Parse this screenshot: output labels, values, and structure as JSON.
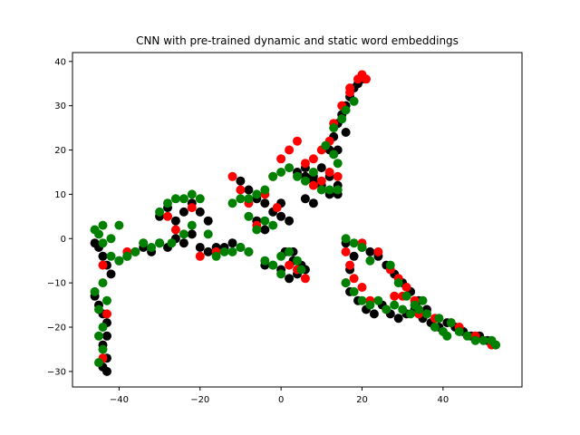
{
  "chart_data": {
    "type": "scatter",
    "title": "CNN with pre-trained dynamic and static word embeddings",
    "xlabel": "",
    "ylabel": "",
    "xlim": [
      -51.5,
      59.5
    ],
    "ylim": [
      -33.5,
      42
    ],
    "xticks": [
      -40,
      -20,
      0,
      20,
      40
    ],
    "yticks": [
      -30,
      -20,
      -10,
      0,
      10,
      20,
      30,
      40
    ],
    "xtick_labels": [
      "−40",
      "−20",
      "0",
      "20",
      "40"
    ],
    "ytick_labels": [
      "−30",
      "−20",
      "−10",
      "0",
      "10",
      "20",
      "30",
      "40"
    ],
    "grid": false,
    "series": [
      {
        "color": "#000000",
        "points": [
          [
            -46,
            -13
          ],
          [
            -45,
            -15
          ],
          [
            -44,
            -17
          ],
          [
            -43,
            -19
          ],
          [
            -43,
            -22
          ],
          [
            -44,
            -24
          ],
          [
            -43,
            -27
          ],
          [
            -44,
            -29
          ],
          [
            -43,
            -30
          ],
          [
            -46,
            -1
          ],
          [
            -45,
            -2
          ],
          [
            -44,
            -4
          ],
          [
            -43,
            -6
          ],
          [
            -42,
            -8
          ],
          [
            -40,
            -5
          ],
          [
            -38,
            -4
          ],
          [
            -36,
            -3
          ],
          [
            -34,
            -2
          ],
          [
            -32,
            -3
          ],
          [
            -30,
            -1
          ],
          [
            -28,
            -2
          ],
          [
            -26,
            0
          ],
          [
            -24,
            -1
          ],
          [
            -22,
            1
          ],
          [
            -20,
            -2
          ],
          [
            -18,
            -3
          ],
          [
            -16,
            -2
          ],
          [
            -14,
            -2
          ],
          [
            -12,
            -1
          ],
          [
            -26,
            4
          ],
          [
            -24,
            6
          ],
          [
            -22,
            8
          ],
          [
            -20,
            6
          ],
          [
            -18,
            4
          ],
          [
            -30,
            5
          ],
          [
            -28,
            7
          ],
          [
            -10,
            13
          ],
          [
            -8,
            11
          ],
          [
            -6,
            9
          ],
          [
            -4,
            8
          ],
          [
            -2,
            6
          ],
          [
            0,
            5
          ],
          [
            2,
            4
          ],
          [
            -6,
            4
          ],
          [
            -4,
            2
          ],
          [
            0,
            8
          ],
          [
            -10,
            -2
          ],
          [
            -8,
            -3
          ],
          [
            4,
            15
          ],
          [
            6,
            14
          ],
          [
            8,
            13
          ],
          [
            10,
            12
          ],
          [
            12,
            14
          ],
          [
            10,
            16
          ],
          [
            8,
            14
          ],
          [
            6,
            16
          ],
          [
            14,
            12
          ],
          [
            14,
            10
          ],
          [
            12,
            10
          ],
          [
            6,
            9
          ],
          [
            8,
            8
          ],
          [
            12,
            20
          ],
          [
            13,
            23
          ],
          [
            14,
            26
          ],
          [
            15,
            28
          ],
          [
            16,
            30
          ],
          [
            17,
            32
          ],
          [
            18,
            34
          ],
          [
            19,
            35
          ],
          [
            20,
            36
          ],
          [
            14,
            20
          ],
          [
            16,
            24
          ],
          [
            -2,
            -6
          ],
          [
            0,
            -7
          ],
          [
            2,
            -9
          ],
          [
            4,
            -8
          ],
          [
            6,
            -7
          ],
          [
            3,
            -5
          ],
          [
            1,
            -3
          ],
          [
            3,
            -3
          ],
          [
            5,
            -6
          ],
          [
            -4,
            -6
          ],
          [
            16,
            -1
          ],
          [
            18,
            -4
          ],
          [
            17,
            -7
          ],
          [
            16,
            -10
          ],
          [
            17,
            -12
          ],
          [
            19,
            -14
          ],
          [
            21,
            -16
          ],
          [
            23,
            -17
          ],
          [
            25,
            -15
          ],
          [
            27,
            -17
          ],
          [
            29,
            -18
          ],
          [
            31,
            -17
          ],
          [
            33,
            -16
          ],
          [
            35,
            -18
          ],
          [
            37,
            -19
          ],
          [
            39,
            -20
          ],
          [
            41,
            -19
          ],
          [
            43,
            -20
          ],
          [
            45,
            -21
          ],
          [
            47,
            -22
          ],
          [
            49,
            -22
          ],
          [
            51,
            -23
          ],
          [
            53,
            -24
          ],
          [
            20,
            -2
          ],
          [
            22,
            -3
          ],
          [
            24,
            -4
          ],
          [
            26,
            -6
          ],
          [
            28,
            -8
          ],
          [
            30,
            -10
          ],
          [
            32,
            -12
          ],
          [
            34,
            -14
          ],
          [
            36,
            -16
          ]
        ]
      },
      {
        "color": "#ff0000",
        "points": [
          [
            -44,
            -6
          ],
          [
            -43,
            -17
          ],
          [
            -44,
            -27
          ],
          [
            -38,
            -3
          ],
          [
            -34,
            -1
          ],
          [
            -26,
            2
          ],
          [
            -22,
            7
          ],
          [
            -28,
            5
          ],
          [
            -20,
            -4
          ],
          [
            -16,
            -3
          ],
          [
            -12,
            14
          ],
          [
            -10,
            11
          ],
          [
            -8,
            8
          ],
          [
            -4,
            10
          ],
          [
            -2,
            14
          ],
          [
            0,
            18
          ],
          [
            2,
            20
          ],
          [
            4,
            22
          ],
          [
            -6,
            3
          ],
          [
            -1,
            7
          ],
          [
            6,
            17
          ],
          [
            8,
            18
          ],
          [
            10,
            20
          ],
          [
            12,
            22
          ],
          [
            13,
            26
          ],
          [
            15,
            30
          ],
          [
            17,
            33
          ],
          [
            19,
            36
          ],
          [
            20,
            37
          ],
          [
            21,
            36
          ],
          [
            17,
            34
          ],
          [
            8,
            12
          ],
          [
            10,
            13
          ],
          [
            12,
            15
          ],
          [
            14,
            14
          ],
          [
            4,
            -7
          ],
          [
            6,
            -9
          ],
          [
            2,
            -6
          ],
          [
            16,
            -3
          ],
          [
            17,
            -6
          ],
          [
            18,
            -9
          ],
          [
            20,
            -11
          ],
          [
            22,
            -14
          ],
          [
            26,
            -16
          ],
          [
            28,
            -13
          ],
          [
            30,
            -13
          ],
          [
            34,
            -17
          ],
          [
            38,
            -18
          ],
          [
            42,
            -19
          ],
          [
            44,
            -20
          ],
          [
            48,
            -22
          ],
          [
            52,
            -24
          ],
          [
            20,
            -1
          ],
          [
            24,
            -3
          ],
          [
            27,
            -7
          ],
          [
            29,
            -9
          ],
          [
            31,
            -11
          ],
          [
            33,
            -14
          ]
        ]
      },
      {
        "color": "#008000",
        "points": [
          [
            -46,
            -12
          ],
          [
            -45,
            -16
          ],
          [
            -44,
            -20
          ],
          [
            -45,
            -22
          ],
          [
            -44,
            -25
          ],
          [
            -45,
            -28
          ],
          [
            -43,
            -14
          ],
          [
            -44,
            -10
          ],
          [
            -46,
            2
          ],
          [
            -45,
            1
          ],
          [
            -44,
            3
          ],
          [
            -44,
            -1
          ],
          [
            -42,
            0
          ],
          [
            -42,
            -4
          ],
          [
            -40,
            3
          ],
          [
            -40,
            -5
          ],
          [
            -38,
            -4
          ],
          [
            -36,
            -3
          ],
          [
            -34,
            -1
          ],
          [
            -32,
            -2
          ],
          [
            -30,
            6
          ],
          [
            -28,
            8
          ],
          [
            -26,
            9
          ],
          [
            -24,
            9
          ],
          [
            -22,
            10
          ],
          [
            -20,
            9
          ],
          [
            -22,
            3
          ],
          [
            -18,
            1
          ],
          [
            -16,
            -4
          ],
          [
            -14,
            -3
          ],
          [
            -12,
            -3
          ],
          [
            -10,
            -2
          ],
          [
            -8,
            -3
          ],
          [
            -30,
            -1
          ],
          [
            -27,
            -1
          ],
          [
            -24,
            1
          ],
          [
            -12,
            8
          ],
          [
            -10,
            9
          ],
          [
            -8,
            9
          ],
          [
            -6,
            10
          ],
          [
            -4,
            11
          ],
          [
            -2,
            14
          ],
          [
            0,
            15
          ],
          [
            2,
            16
          ],
          [
            -8,
            5
          ],
          [
            -6,
            2
          ],
          [
            -4,
            4
          ],
          [
            -2,
            3
          ],
          [
            4,
            14
          ],
          [
            6,
            13
          ],
          [
            8,
            15
          ],
          [
            10,
            11
          ],
          [
            12,
            11
          ],
          [
            14,
            11
          ],
          [
            14,
            17
          ],
          [
            13,
            19
          ],
          [
            11,
            21
          ],
          [
            13,
            25
          ],
          [
            15,
            27
          ],
          [
            16,
            29
          ],
          [
            18,
            31
          ],
          [
            -4,
            -5
          ],
          [
            -2,
            -6
          ],
          [
            0,
            -4
          ],
          [
            2,
            -3
          ],
          [
            4,
            -5
          ],
          [
            5,
            -7
          ],
          [
            0,
            -8
          ],
          [
            16,
            -10
          ],
          [
            18,
            -12
          ],
          [
            20,
            -14
          ],
          [
            22,
            -15
          ],
          [
            24,
            -14
          ],
          [
            26,
            -16
          ],
          [
            28,
            -15
          ],
          [
            30,
            -16
          ],
          [
            32,
            -17
          ],
          [
            34,
            -16
          ],
          [
            36,
            -17
          ],
          [
            38,
            -20
          ],
          [
            40,
            -21
          ],
          [
            42,
            -19
          ],
          [
            44,
            -21
          ],
          [
            46,
            -22
          ],
          [
            48,
            -23
          ],
          [
            50,
            -23
          ],
          [
            52,
            -23
          ],
          [
            53,
            -24
          ],
          [
            16,
            0
          ],
          [
            18,
            -1
          ],
          [
            20,
            -2
          ],
          [
            22,
            -5
          ],
          [
            27,
            -6
          ],
          [
            29,
            -10
          ],
          [
            31,
            -13
          ],
          [
            33,
            -15
          ],
          [
            35,
            -14
          ],
          [
            39,
            -18
          ],
          [
            41,
            -22
          ]
        ]
      }
    ]
  }
}
